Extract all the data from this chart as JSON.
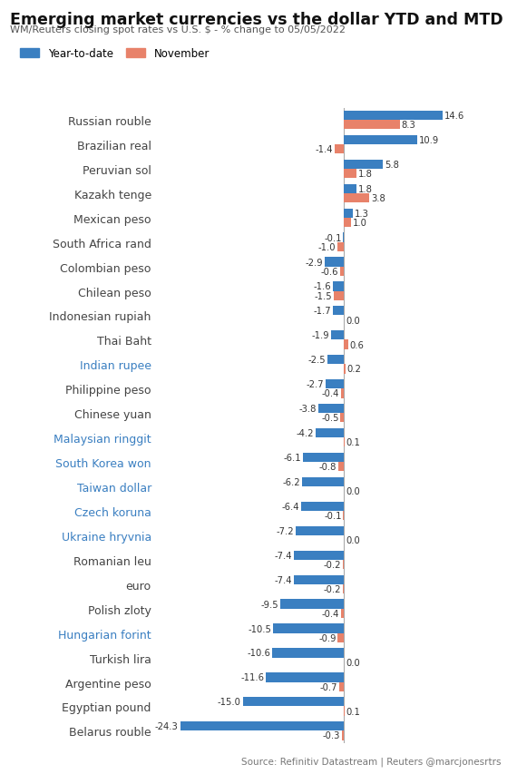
{
  "title": "Emerging market currencies vs the dollar YTD and MTD",
  "subtitle": "WM/Reuters closing spot rates vs U.S. $ - % change to 05/05/2022",
  "source": "Source: Refinitiv Datastream | Reuters @marcjonesrtrs",
  "legend": [
    "Year-to-date",
    "November"
  ],
  "colors": [
    "#3a7fc1",
    "#e8826a"
  ],
  "categories": [
    "Russian rouble",
    "Brazilian real",
    "Peruvian sol",
    "Kazakh tenge",
    "Mexican peso",
    "South Africa rand",
    "Colombian peso",
    "Chilean peso",
    "Indonesian rupiah",
    "Thai Baht",
    "Indian rupee",
    "Philippine peso",
    "Chinese yuan",
    "Malaysian ringgit",
    "South Korea won",
    "Taiwan dollar",
    "Czech koruna",
    "Ukraine hryvnia",
    "Romanian leu",
    "euro",
    "Polish zloty",
    "Hungarian forint",
    "Turkish lira",
    "Argentine peso",
    "Egyptian pound",
    "Belarus rouble"
  ],
  "ytd": [
    14.6,
    10.9,
    5.8,
    1.8,
    1.3,
    -0.1,
    -2.9,
    -1.6,
    -1.7,
    -1.9,
    -2.5,
    -2.7,
    -3.8,
    -4.2,
    -6.1,
    -6.2,
    -6.4,
    -7.2,
    -7.4,
    -7.4,
    -9.5,
    -10.5,
    -10.6,
    -11.6,
    -15.0,
    -24.3
  ],
  "november": [
    8.3,
    -1.4,
    1.8,
    3.8,
    1.0,
    -1.0,
    -0.6,
    -1.5,
    0.0,
    0.6,
    0.2,
    -0.4,
    -0.5,
    0.1,
    -0.8,
    0.0,
    -0.1,
    0.0,
    -0.2,
    -0.2,
    -0.4,
    -0.9,
    0.0,
    -0.7,
    0.1,
    -0.3
  ],
  "blue_labels": [
    "Indian rupee",
    "Malaysian ringgit",
    "South Korea won",
    "Taiwan dollar",
    "Czech koruna",
    "Ukraine hryvnia",
    "Hungarian forint"
  ],
  "background_color": "#ffffff",
  "fig_width": 5.7,
  "fig_height": 8.54,
  "dpi": 100
}
